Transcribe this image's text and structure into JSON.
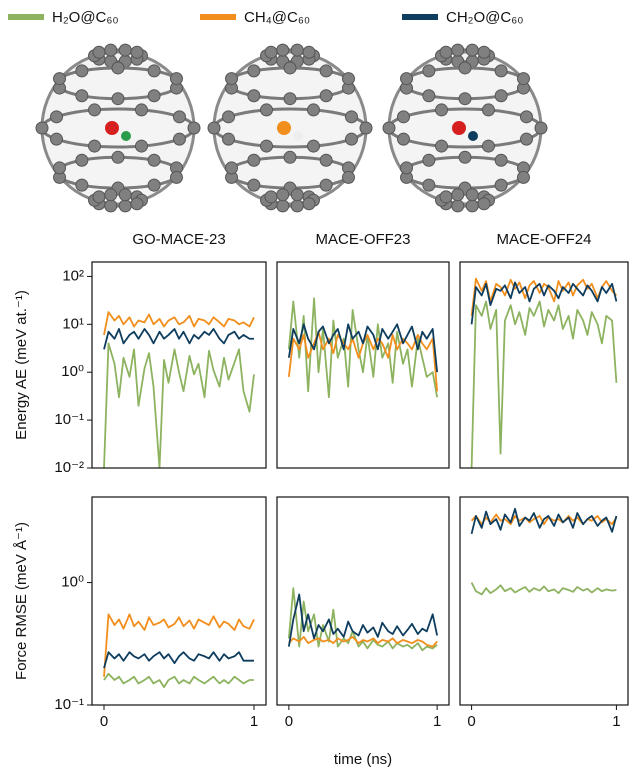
{
  "chart_data": [
    {
      "type": "line",
      "title": "GO-MACE-23",
      "ylabel": "Energy AE (meV at.⁻¹)",
      "log_y": true,
      "xlim": [
        -0.08,
        1.08
      ],
      "ylim": [
        0.01,
        200
      ],
      "yticks": [
        {
          "value": 0.01,
          "label": "10⁻²"
        },
        {
          "value": 0.1,
          "label": "10⁻¹"
        },
        {
          "value": 1,
          "label": "10⁰"
        },
        {
          "value": 10,
          "label": "10¹"
        },
        {
          "value": 100,
          "label": "10²"
        }
      ],
      "x": [
        0,
        0.03,
        0.07,
        0.1,
        0.13,
        0.17,
        0.2,
        0.23,
        0.27,
        0.3,
        0.33,
        0.37,
        0.4,
        0.43,
        0.47,
        0.5,
        0.53,
        0.57,
        0.6,
        0.63,
        0.67,
        0.7,
        0.73,
        0.77,
        0.8,
        0.83,
        0.87,
        0.9,
        0.93,
        0.97,
        1
      ],
      "series": [
        {
          "name": "H₂O@C₆₀",
          "color": "#8db360",
          "values": [
            0.01,
            4,
            1.5,
            0.3,
            2,
            0.8,
            3,
            0.2,
            1.2,
            2.5,
            0.5,
            0.01,
            1.8,
            0.6,
            3,
            1,
            0.4,
            2.2,
            0.9,
            1.5,
            0.3,
            2.8,
            1.1,
            0.5,
            2,
            0.7,
            1.6,
            3,
            0.4,
            0.15,
            0.9
          ]
        },
        {
          "name": "CH₄@C₆₀",
          "color": "#f28e1c",
          "values": [
            6,
            18,
            12,
            15,
            10,
            14,
            9,
            12,
            11,
            16,
            10,
            13,
            9,
            12,
            14,
            10,
            11,
            15,
            9,
            13,
            12,
            10,
            14,
            11,
            9,
            13,
            12,
            10,
            11,
            9,
            14
          ]
        },
        {
          "name": "CH₂O@C₆₀",
          "color": "#0e3d5e",
          "values": [
            3,
            7,
            5,
            8,
            4,
            6,
            7,
            5,
            8,
            6,
            4,
            7,
            5,
            6,
            8,
            5,
            7,
            4,
            6,
            5,
            7,
            6,
            8,
            5,
            4,
            6,
            7,
            5,
            6,
            5,
            5
          ]
        }
      ]
    },
    {
      "type": "line",
      "title": "MACE-OFF23",
      "log_y": true,
      "xlim": [
        -0.08,
        1.08
      ],
      "ylim": [
        0.01,
        200
      ],
      "x": [
        0,
        0.03,
        0.07,
        0.1,
        0.13,
        0.17,
        0.2,
        0.23,
        0.27,
        0.3,
        0.33,
        0.37,
        0.4,
        0.43,
        0.47,
        0.5,
        0.53,
        0.57,
        0.6,
        0.63,
        0.67,
        0.7,
        0.73,
        0.77,
        0.8,
        0.83,
        0.87,
        0.9,
        0.93,
        0.97,
        1
      ],
      "series": [
        {
          "color": "#8db360",
          "values": [
            3,
            30,
            2,
            15,
            0.4,
            35,
            1,
            8,
            0.3,
            12,
            2,
            5,
            0.5,
            20,
            3,
            1,
            6,
            0.8,
            10,
            2,
            4,
            0.6,
            7,
            1.5,
            3,
            0.5,
            5,
            2,
            0.8,
            1,
            0.3
          ]
        },
        {
          "color": "#f28e1c",
          "values": [
            0.8,
            5,
            3,
            6,
            2,
            4,
            7,
            3,
            5,
            2.5,
            6,
            4,
            3,
            5,
            2,
            4,
            6,
            3,
            5,
            4,
            2,
            6,
            3,
            5,
            4,
            3,
            6,
            4,
            3,
            5,
            0.4
          ]
        },
        {
          "color": "#0e3d5e",
          "values": [
            2,
            8,
            4,
            10,
            5,
            3,
            7,
            9,
            4,
            6,
            8,
            3,
            10,
            5,
            7,
            4,
            9,
            6,
            3,
            8,
            5,
            7,
            10,
            4,
            6,
            9,
            3,
            7,
            5,
            8,
            1
          ]
        }
      ]
    },
    {
      "type": "line",
      "title": "MACE-OFF24",
      "log_y": true,
      "xlim": [
        -0.08,
        1.08
      ],
      "ylim": [
        0.01,
        200
      ],
      "x": [
        0,
        0.03,
        0.07,
        0.1,
        0.13,
        0.17,
        0.2,
        0.23,
        0.27,
        0.3,
        0.33,
        0.37,
        0.4,
        0.43,
        0.47,
        0.5,
        0.53,
        0.57,
        0.6,
        0.63,
        0.67,
        0.7,
        0.73,
        0.77,
        0.8,
        0.83,
        0.87,
        0.9,
        0.93,
        0.97,
        1
      ],
      "series": [
        {
          "color": "#8db360",
          "values": [
            0.01,
            25,
            15,
            30,
            8,
            20,
            0.02,
            12,
            25,
            10,
            18,
            6,
            22,
            15,
            30,
            9,
            20,
            12,
            25,
            8,
            15,
            5,
            20,
            12,
            6,
            18,
            10,
            4,
            15,
            12,
            0.6
          ]
        },
        {
          "color": "#f28e1c",
          "values": [
            15,
            90,
            50,
            80,
            30,
            70,
            60,
            40,
            85,
            55,
            75,
            35,
            65,
            80,
            45,
            70,
            60,
            30,
            80,
            50,
            75,
            40,
            65,
            85,
            55,
            70,
            35,
            60,
            80,
            50,
            40
          ]
        },
        {
          "color": "#0e3d5e",
          "values": [
            10,
            60,
            40,
            70,
            25,
            55,
            50,
            65,
            35,
            75,
            45,
            60,
            30,
            55,
            70,
            40,
            65,
            50,
            35,
            60,
            45,
            70,
            55,
            40,
            65,
            50,
            30,
            60,
            45,
            70,
            30
          ]
        }
      ]
    },
    {
      "type": "line",
      "ylabel": "Force RMSE (meV Å⁻¹)",
      "log_y": true,
      "xlim": [
        -0.08,
        1.08
      ],
      "ylim": [
        0.1,
        5
      ],
      "xticks": [
        0,
        1
      ],
      "yticks": [
        {
          "value": 0.1,
          "label": "10⁻¹"
        },
        {
          "value": 1,
          "label": "10⁰"
        }
      ],
      "x": [
        0,
        0.03,
        0.07,
        0.1,
        0.13,
        0.17,
        0.2,
        0.23,
        0.27,
        0.3,
        0.33,
        0.37,
        0.4,
        0.43,
        0.47,
        0.5,
        0.53,
        0.57,
        0.6,
        0.63,
        0.67,
        0.7,
        0.73,
        0.77,
        0.8,
        0.83,
        0.87,
        0.9,
        0.93,
        0.97,
        1
      ],
      "series": [
        {
          "color": "#8db360",
          "values": [
            0.16,
            0.18,
            0.16,
            0.17,
            0.15,
            0.16,
            0.17,
            0.15,
            0.16,
            0.17,
            0.15,
            0.16,
            0.14,
            0.16,
            0.17,
            0.15,
            0.16,
            0.15,
            0.17,
            0.16,
            0.15,
            0.16,
            0.17,
            0.15,
            0.16,
            0.15,
            0.17,
            0.16,
            0.15,
            0.16,
            0.16
          ]
        },
        {
          "color": "#f28e1c",
          "values": [
            0.17,
            0.55,
            0.45,
            0.5,
            0.42,
            0.55,
            0.44,
            0.48,
            0.41,
            0.52,
            0.45,
            0.47,
            0.5,
            0.43,
            0.46,
            0.52,
            0.44,
            0.49,
            0.42,
            0.5,
            0.47,
            0.45,
            0.53,
            0.43,
            0.48,
            0.46,
            0.41,
            0.5,
            0.44,
            0.42,
            0.5
          ]
        },
        {
          "color": "#0e3d5e",
          "values": [
            0.2,
            0.27,
            0.24,
            0.26,
            0.23,
            0.27,
            0.25,
            0.24,
            0.26,
            0.23,
            0.25,
            0.27,
            0.24,
            0.26,
            0.22,
            0.25,
            0.27,
            0.24,
            0.23,
            0.26,
            0.25,
            0.24,
            0.27,
            0.23,
            0.26,
            0.24,
            0.25,
            0.27,
            0.23,
            0.23,
            0.23
          ]
        }
      ]
    },
    {
      "type": "line",
      "xlabel": "time (ns)",
      "log_y": true,
      "xlim": [
        -0.08,
        1.08
      ],
      "ylim": [
        0.1,
        5
      ],
      "xticks": [
        0,
        1
      ],
      "x": [
        0,
        0.03,
        0.07,
        0.1,
        0.13,
        0.17,
        0.2,
        0.23,
        0.27,
        0.3,
        0.33,
        0.37,
        0.4,
        0.43,
        0.47,
        0.5,
        0.53,
        0.57,
        0.6,
        0.63,
        0.67,
        0.7,
        0.73,
        0.77,
        0.8,
        0.83,
        0.87,
        0.9,
        0.93,
        0.97,
        1
      ],
      "series": [
        {
          "color": "#8db360",
          "values": [
            0.35,
            0.9,
            0.3,
            0.7,
            0.4,
            0.55,
            0.3,
            0.45,
            0.33,
            0.6,
            0.3,
            0.35,
            0.32,
            0.4,
            0.3,
            0.33,
            0.29,
            0.34,
            0.31,
            0.3,
            0.33,
            0.29,
            0.32,
            0.3,
            0.31,
            0.29,
            0.32,
            0.28,
            0.3,
            0.29,
            0.31
          ]
        },
        {
          "color": "#f28e1c",
          "values": [
            0.32,
            0.35,
            0.33,
            0.36,
            0.32,
            0.34,
            0.35,
            0.33,
            0.34,
            0.32,
            0.35,
            0.33,
            0.34,
            0.36,
            0.32,
            0.34,
            0.33,
            0.35,
            0.32,
            0.34,
            0.33,
            0.35,
            0.32,
            0.34,
            0.33,
            0.32,
            0.34,
            0.33,
            0.31,
            0.3,
            0.33
          ]
        },
        {
          "color": "#0e3d5e",
          "values": [
            0.3,
            0.5,
            0.8,
            0.4,
            0.55,
            0.35,
            0.45,
            0.4,
            0.5,
            0.38,
            0.42,
            0.36,
            0.48,
            0.4,
            0.37,
            0.45,
            0.39,
            0.43,
            0.36,
            0.47,
            0.4,
            0.38,
            0.44,
            0.37,
            0.41,
            0.46,
            0.38,
            0.42,
            0.4,
            0.55,
            0.37
          ]
        }
      ]
    },
    {
      "type": "line",
      "log_y": true,
      "xlim": [
        -0.08,
        1.08
      ],
      "ylim": [
        0.1,
        5
      ],
      "xticks": [
        0,
        1
      ],
      "x": [
        0,
        0.03,
        0.07,
        0.1,
        0.13,
        0.17,
        0.2,
        0.23,
        0.27,
        0.3,
        0.33,
        0.37,
        0.4,
        0.43,
        0.47,
        0.5,
        0.53,
        0.57,
        0.6,
        0.63,
        0.67,
        0.7,
        0.73,
        0.77,
        0.8,
        0.83,
        0.87,
        0.9,
        0.93,
        0.97,
        1
      ],
      "series": [
        {
          "color": "#8db360",
          "values": [
            1,
            0.85,
            0.8,
            0.9,
            0.82,
            0.88,
            0.95,
            0.85,
            0.9,
            0.83,
            0.87,
            0.92,
            0.84,
            0.9,
            0.86,
            0.93,
            0.85,
            0.88,
            0.82,
            0.9,
            0.87,
            0.84,
            0.92,
            0.86,
            0.89,
            0.83,
            0.9,
            0.85,
            0.88,
            0.86,
            0.87
          ]
        },
        {
          "color": "#f28e1c",
          "values": [
            3.2,
            3.5,
            3,
            3.4,
            3.1,
            3.6,
            3.2,
            3.3,
            3,
            3.5,
            3.2,
            3.4,
            3.1,
            3.3,
            3.5,
            3,
            3.4,
            3.2,
            3.3,
            3.1,
            3.5,
            3.2,
            3.4,
            3,
            3.3,
            3.2,
            3.5,
            3.1,
            3.3,
            3,
            3.4
          ]
        },
        {
          "color": "#0e3d5e",
          "values": [
            2.5,
            3.5,
            2.8,
            3.8,
            3,
            3.3,
            2.7,
            3.6,
            3.1,
            4,
            2.9,
            3.4,
            3.2,
            3.7,
            2.8,
            3.3,
            3.5,
            2.9,
            3.6,
            3.1,
            3.4,
            2.8,
            3.7,
            3,
            3.3,
            3.5,
            2.9,
            3.2,
            3.4,
            2.6,
            3.5
          ]
        }
      ]
    }
  ]
}
